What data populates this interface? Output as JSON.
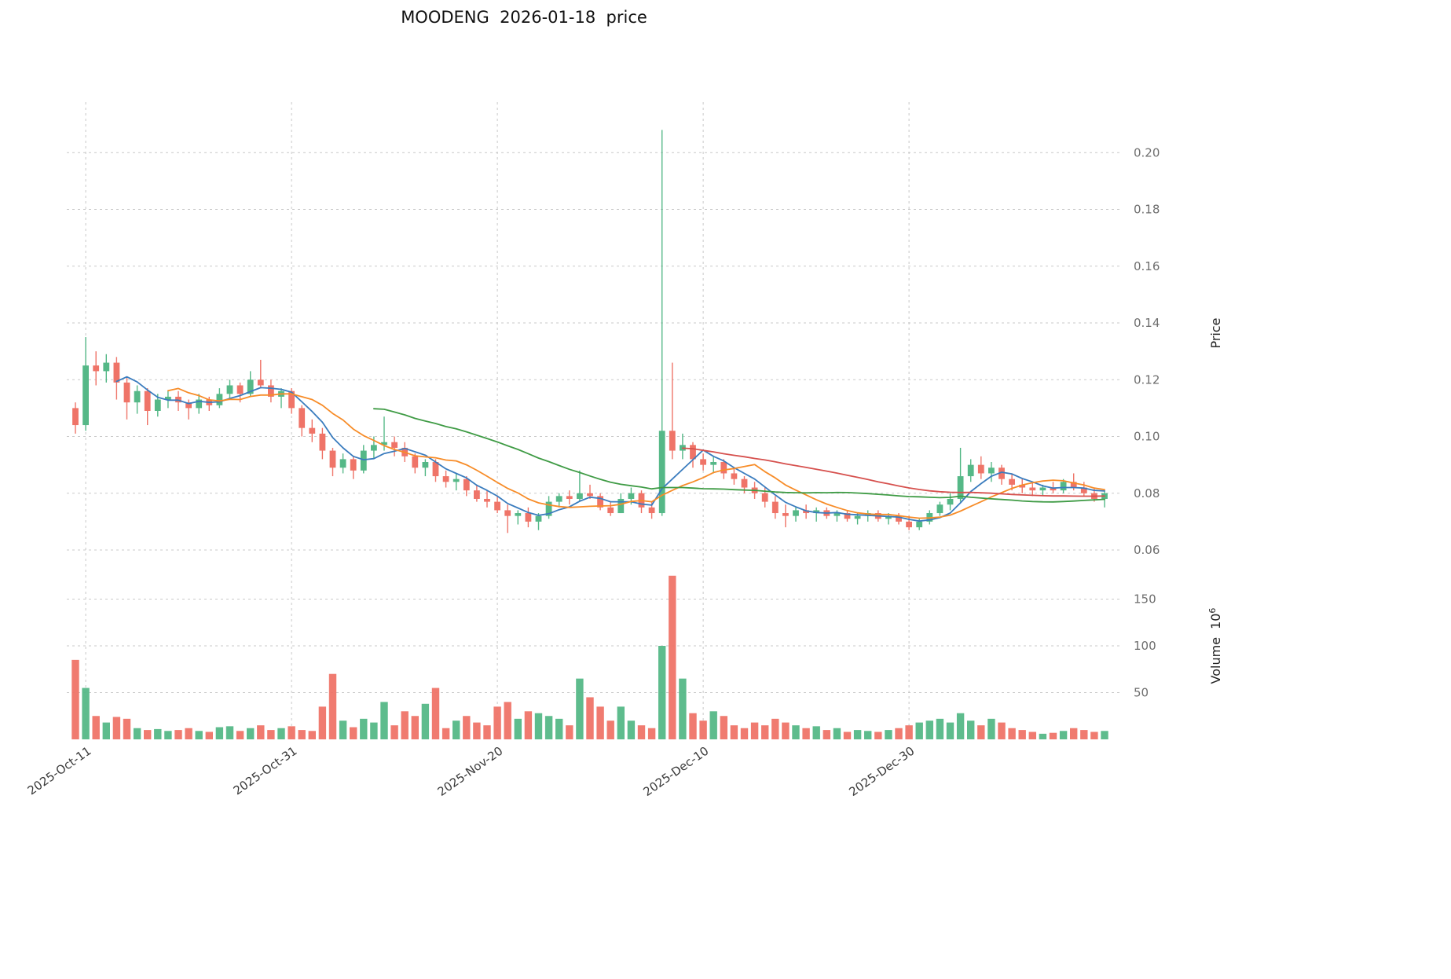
{
  "chart_data": {
    "type": "candlestick",
    "title": "MOODENG  2026-01-18  price",
    "legend": "none",
    "grid": "dashed",
    "x_axis": {
      "tick_labels": [
        "2025-Oct-11",
        "2025-Oct-31",
        "2025-Nov-20",
        "2025-Dec-10",
        "2025-Dec-30"
      ],
      "tick_dates": [
        "2025-10-11",
        "2025-10-31",
        "2025-11-20",
        "2025-12-10",
        "2025-12-30"
      ]
    },
    "price_axis": {
      "label": "Price",
      "side": "right",
      "ticks": [
        0.06,
        0.08,
        0.1,
        0.12,
        0.14,
        0.16,
        0.18,
        0.2
      ],
      "range": [
        0.048,
        0.218
      ]
    },
    "volume_axis": {
      "label": "Volume",
      "scale_base": "10",
      "scale_exponent": "6",
      "side": "right",
      "ticks": [
        50,
        100,
        150
      ],
      "range": [
        0,
        190
      ]
    },
    "colors": {
      "up": "#55b887",
      "down": "#ef7468",
      "grid": "#c9c9c9",
      "ma_short": "#3a7cbe",
      "ma_mid": "#f78c28",
      "ma_long": "#3f9b45",
      "ma_longest": "#d6504d"
    },
    "moving_averages": [
      {
        "name": "MA5",
        "window": 5,
        "color": "#3a7cbe"
      },
      {
        "name": "MA10",
        "window": 10,
        "color": "#f78c28"
      },
      {
        "name": "MA30",
        "window": 30,
        "color": "#3f9b45"
      },
      {
        "name": "MA60",
        "window": 60,
        "color": "#d6504d"
      }
    ],
    "dates": [
      "2025-10-10",
      "2025-10-11",
      "2025-10-12",
      "2025-10-13",
      "2025-10-14",
      "2025-10-15",
      "2025-10-16",
      "2025-10-17",
      "2025-10-18",
      "2025-10-19",
      "2025-10-20",
      "2025-10-21",
      "2025-10-22",
      "2025-10-23",
      "2025-10-24",
      "2025-10-25",
      "2025-10-26",
      "2025-10-27",
      "2025-10-28",
      "2025-10-29",
      "2025-10-30",
      "2025-10-31",
      "2025-11-01",
      "2025-11-02",
      "2025-11-03",
      "2025-11-04",
      "2025-11-05",
      "2025-11-06",
      "2025-11-07",
      "2025-11-08",
      "2025-11-09",
      "2025-11-10",
      "2025-11-11",
      "2025-11-12",
      "2025-11-13",
      "2025-11-14",
      "2025-11-15",
      "2025-11-16",
      "2025-11-17",
      "2025-11-18",
      "2025-11-19",
      "2025-11-20",
      "2025-11-21",
      "2025-11-22",
      "2025-11-23",
      "2025-11-24",
      "2025-11-25",
      "2025-11-26",
      "2025-11-27",
      "2025-11-28",
      "2025-11-29",
      "2025-11-30",
      "2025-12-01",
      "2025-12-02",
      "2025-12-03",
      "2025-12-04",
      "2025-12-05",
      "2025-12-06",
      "2025-12-07",
      "2025-12-08",
      "2025-12-09",
      "2025-12-10",
      "2025-12-11",
      "2025-12-12",
      "2025-12-13",
      "2025-12-14",
      "2025-12-15",
      "2025-12-16",
      "2025-12-17",
      "2025-12-18",
      "2025-12-19",
      "2025-12-20",
      "2025-12-21",
      "2025-12-22",
      "2025-12-23",
      "2025-12-24",
      "2025-12-25",
      "2025-12-26",
      "2025-12-27",
      "2025-12-28",
      "2025-12-29",
      "2025-12-30",
      "2025-12-31",
      "2026-01-01",
      "2026-01-02",
      "2026-01-03",
      "2026-01-04",
      "2026-01-05",
      "2026-01-06",
      "2026-01-07",
      "2026-01-08",
      "2026-01-09",
      "2026-01-10",
      "2026-01-11",
      "2026-01-12",
      "2026-01-13",
      "2026-01-14",
      "2026-01-15",
      "2026-01-16",
      "2026-01-17",
      "2026-01-18"
    ],
    "ohlc": [
      [
        0.11,
        0.112,
        0.101,
        0.104
      ],
      [
        0.104,
        0.135,
        0.102,
        0.125
      ],
      [
        0.125,
        0.13,
        0.118,
        0.123
      ],
      [
        0.123,
        0.129,
        0.119,
        0.126
      ],
      [
        0.126,
        0.128,
        0.113,
        0.119
      ],
      [
        0.119,
        0.121,
        0.106,
        0.112
      ],
      [
        0.112,
        0.118,
        0.108,
        0.116
      ],
      [
        0.116,
        0.117,
        0.104,
        0.109
      ],
      [
        0.109,
        0.115,
        0.107,
        0.113
      ],
      [
        0.113,
        0.116,
        0.11,
        0.114
      ],
      [
        0.114,
        0.116,
        0.109,
        0.112
      ],
      [
        0.112,
        0.113,
        0.106,
        0.11
      ],
      [
        0.11,
        0.115,
        0.108,
        0.113
      ],
      [
        0.113,
        0.114,
        0.109,
        0.111
      ],
      [
        0.111,
        0.117,
        0.11,
        0.115
      ],
      [
        0.115,
        0.12,
        0.113,
        0.118
      ],
      [
        0.118,
        0.119,
        0.112,
        0.115
      ],
      [
        0.115,
        0.123,
        0.114,
        0.12
      ],
      [
        0.12,
        0.127,
        0.117,
        0.118
      ],
      [
        0.118,
        0.12,
        0.112,
        0.114
      ],
      [
        0.114,
        0.117,
        0.11,
        0.116
      ],
      [
        0.116,
        0.117,
        0.108,
        0.11
      ],
      [
        0.11,
        0.111,
        0.1,
        0.103
      ],
      [
        0.103,
        0.106,
        0.098,
        0.101
      ],
      [
        0.101,
        0.103,
        0.092,
        0.095
      ],
      [
        0.095,
        0.096,
        0.086,
        0.089
      ],
      [
        0.089,
        0.094,
        0.087,
        0.092
      ],
      [
        0.092,
        0.093,
        0.085,
        0.088
      ],
      [
        0.088,
        0.097,
        0.087,
        0.095
      ],
      [
        0.095,
        0.1,
        0.092,
        0.097
      ],
      [
        0.097,
        0.107,
        0.095,
        0.098
      ],
      [
        0.098,
        0.1,
        0.093,
        0.096
      ],
      [
        0.096,
        0.098,
        0.091,
        0.093
      ],
      [
        0.093,
        0.094,
        0.087,
        0.089
      ],
      [
        0.089,
        0.092,
        0.086,
        0.091
      ],
      [
        0.091,
        0.092,
        0.084,
        0.086
      ],
      [
        0.086,
        0.088,
        0.082,
        0.084
      ],
      [
        0.084,
        0.087,
        0.081,
        0.085
      ],
      [
        0.085,
        0.086,
        0.079,
        0.081
      ],
      [
        0.081,
        0.083,
        0.077,
        0.078
      ],
      [
        0.078,
        0.081,
        0.075,
        0.077
      ],
      [
        0.077,
        0.079,
        0.073,
        0.074
      ],
      [
        0.074,
        0.076,
        0.066,
        0.072
      ],
      [
        0.072,
        0.074,
        0.069,
        0.073
      ],
      [
        0.073,
        0.075,
        0.068,
        0.07
      ],
      [
        0.07,
        0.073,
        0.067,
        0.072
      ],
      [
        0.072,
        0.079,
        0.071,
        0.077
      ],
      [
        0.077,
        0.08,
        0.075,
        0.079
      ],
      [
        0.079,
        0.081,
        0.076,
        0.078
      ],
      [
        0.078,
        0.088,
        0.077,
        0.08
      ],
      [
        0.08,
        0.083,
        0.078,
        0.079
      ],
      [
        0.079,
        0.08,
        0.074,
        0.075
      ],
      [
        0.075,
        0.077,
        0.072,
        0.073
      ],
      [
        0.073,
        0.08,
        0.073,
        0.078
      ],
      [
        0.078,
        0.082,
        0.076,
        0.08
      ],
      [
        0.08,
        0.081,
        0.073,
        0.075
      ],
      [
        0.075,
        0.077,
        0.071,
        0.073
      ],
      [
        0.073,
        0.208,
        0.072,
        0.102
      ],
      [
        0.102,
        0.126,
        0.092,
        0.095
      ],
      [
        0.095,
        0.101,
        0.092,
        0.097
      ],
      [
        0.097,
        0.098,
        0.089,
        0.092
      ],
      [
        0.092,
        0.094,
        0.088,
        0.09
      ],
      [
        0.09,
        0.093,
        0.087,
        0.091
      ],
      [
        0.091,
        0.092,
        0.085,
        0.087
      ],
      [
        0.087,
        0.089,
        0.083,
        0.085
      ],
      [
        0.085,
        0.086,
        0.08,
        0.082
      ],
      [
        0.082,
        0.084,
        0.078,
        0.08
      ],
      [
        0.08,
        0.082,
        0.075,
        0.077
      ],
      [
        0.077,
        0.079,
        0.071,
        0.073
      ],
      [
        0.073,
        0.076,
        0.068,
        0.072
      ],
      [
        0.072,
        0.075,
        0.07,
        0.074
      ],
      [
        0.074,
        0.076,
        0.071,
        0.073
      ],
      [
        0.073,
        0.075,
        0.07,
        0.074
      ],
      [
        0.074,
        0.075,
        0.071,
        0.072
      ],
      [
        0.072,
        0.074,
        0.07,
        0.073
      ],
      [
        0.073,
        0.074,
        0.07,
        0.071
      ],
      [
        0.071,
        0.073,
        0.069,
        0.072
      ],
      [
        0.072,
        0.074,
        0.07,
        0.073
      ],
      [
        0.073,
        0.074,
        0.07,
        0.071
      ],
      [
        0.071,
        0.073,
        0.069,
        0.072
      ],
      [
        0.072,
        0.073,
        0.069,
        0.07
      ],
      [
        0.07,
        0.072,
        0.067,
        0.068
      ],
      [
        0.068,
        0.071,
        0.067,
        0.07
      ],
      [
        0.07,
        0.074,
        0.069,
        0.073
      ],
      [
        0.073,
        0.077,
        0.072,
        0.076
      ],
      [
        0.076,
        0.08,
        0.074,
        0.078
      ],
      [
        0.078,
        0.096,
        0.077,
        0.086
      ],
      [
        0.086,
        0.092,
        0.084,
        0.09
      ],
      [
        0.09,
        0.093,
        0.085,
        0.087
      ],
      [
        0.087,
        0.091,
        0.084,
        0.089
      ],
      [
        0.089,
        0.09,
        0.083,
        0.085
      ],
      [
        0.085,
        0.087,
        0.081,
        0.083
      ],
      [
        0.083,
        0.085,
        0.08,
        0.082
      ],
      [
        0.082,
        0.084,
        0.079,
        0.081
      ],
      [
        0.081,
        0.083,
        0.079,
        0.082
      ],
      [
        0.082,
        0.084,
        0.08,
        0.081
      ],
      [
        0.081,
        0.085,
        0.08,
        0.084
      ],
      [
        0.084,
        0.087,
        0.081,
        0.082
      ],
      [
        0.082,
        0.084,
        0.079,
        0.08
      ],
      [
        0.08,
        0.082,
        0.077,
        0.078
      ],
      [
        0.078,
        0.081,
        0.075,
        0.08
      ]
    ],
    "volumes": [
      85,
      55,
      25,
      18,
      24,
      22,
      12,
      10,
      11,
      9,
      10,
      12,
      9,
      8,
      13,
      14,
      9,
      12,
      15,
      10,
      12,
      14,
      10,
      9,
      35,
      70,
      20,
      13,
      22,
      18,
      40,
      15,
      30,
      25,
      38,
      55,
      12,
      20,
      25,
      18,
      15,
      35,
      40,
      22,
      30,
      28,
      25,
      22,
      15,
      65,
      45,
      35,
      20,
      35,
      20,
      15,
      12,
      100,
      175,
      65,
      28,
      20,
      30,
      25,
      15,
      12,
      18,
      15,
      22,
      18,
      15,
      12,
      14,
      10,
      12,
      8,
      10,
      9,
      8,
      10,
      12,
      15,
      18,
      20,
      22,
      18,
      28,
      20,
      15,
      22,
      18,
      12,
      10,
      8,
      6,
      7,
      9,
      12,
      10,
      8,
      9
    ]
  }
}
